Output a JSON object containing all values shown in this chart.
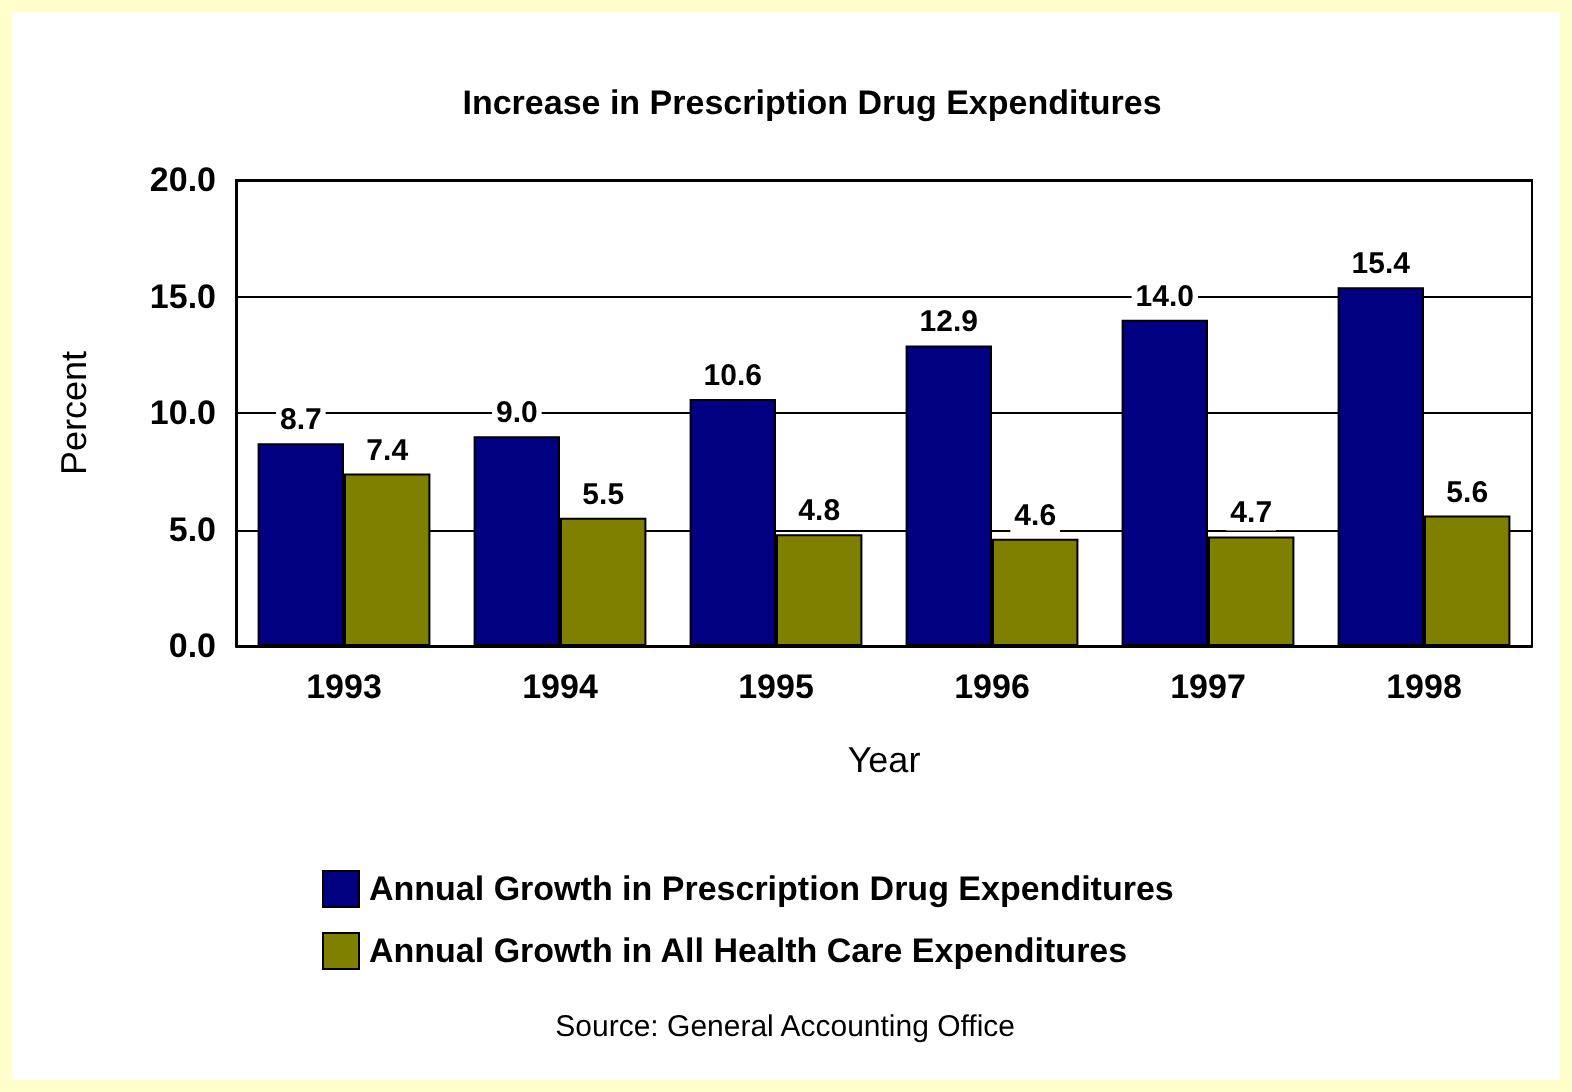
{
  "chart_data": {
    "type": "bar",
    "title": "Increase in Prescription Drug Expenditures",
    "xlabel": "Year",
    "ylabel": "Percent",
    "categories": [
      "1993",
      "1994",
      "1995",
      "1996",
      "1997",
      "1998"
    ],
    "series": [
      {
        "name": "Annual Growth in Prescription Drug Expenditures",
        "color": "#000080",
        "values": [
          8.7,
          9.0,
          10.6,
          12.9,
          14.0,
          15.4
        ],
        "value_labels": [
          "8.7",
          "9.0",
          "10.6",
          "12.9",
          "14.0",
          "15.4"
        ]
      },
      {
        "name": "Annual Growth in All Health Care Expenditures",
        "color": "#808000",
        "values": [
          7.4,
          5.5,
          4.8,
          4.6,
          4.7,
          5.6
        ],
        "value_labels": [
          "7.4",
          "5.5",
          "4.8",
          "4.6",
          "4.7",
          "5.6"
        ]
      }
    ],
    "ylim": [
      0,
      20
    ],
    "yticks": [
      {
        "value": 0,
        "label": "0.0"
      },
      {
        "value": 5,
        "label": "5.0"
      },
      {
        "value": 10,
        "label": "10.0"
      },
      {
        "value": 15,
        "label": "15.0"
      },
      {
        "value": 20,
        "label": "20.0"
      }
    ],
    "grid": "y",
    "legend": "bottom left",
    "annotations": [
      "Source: General Accounting Office"
    ]
  }
}
